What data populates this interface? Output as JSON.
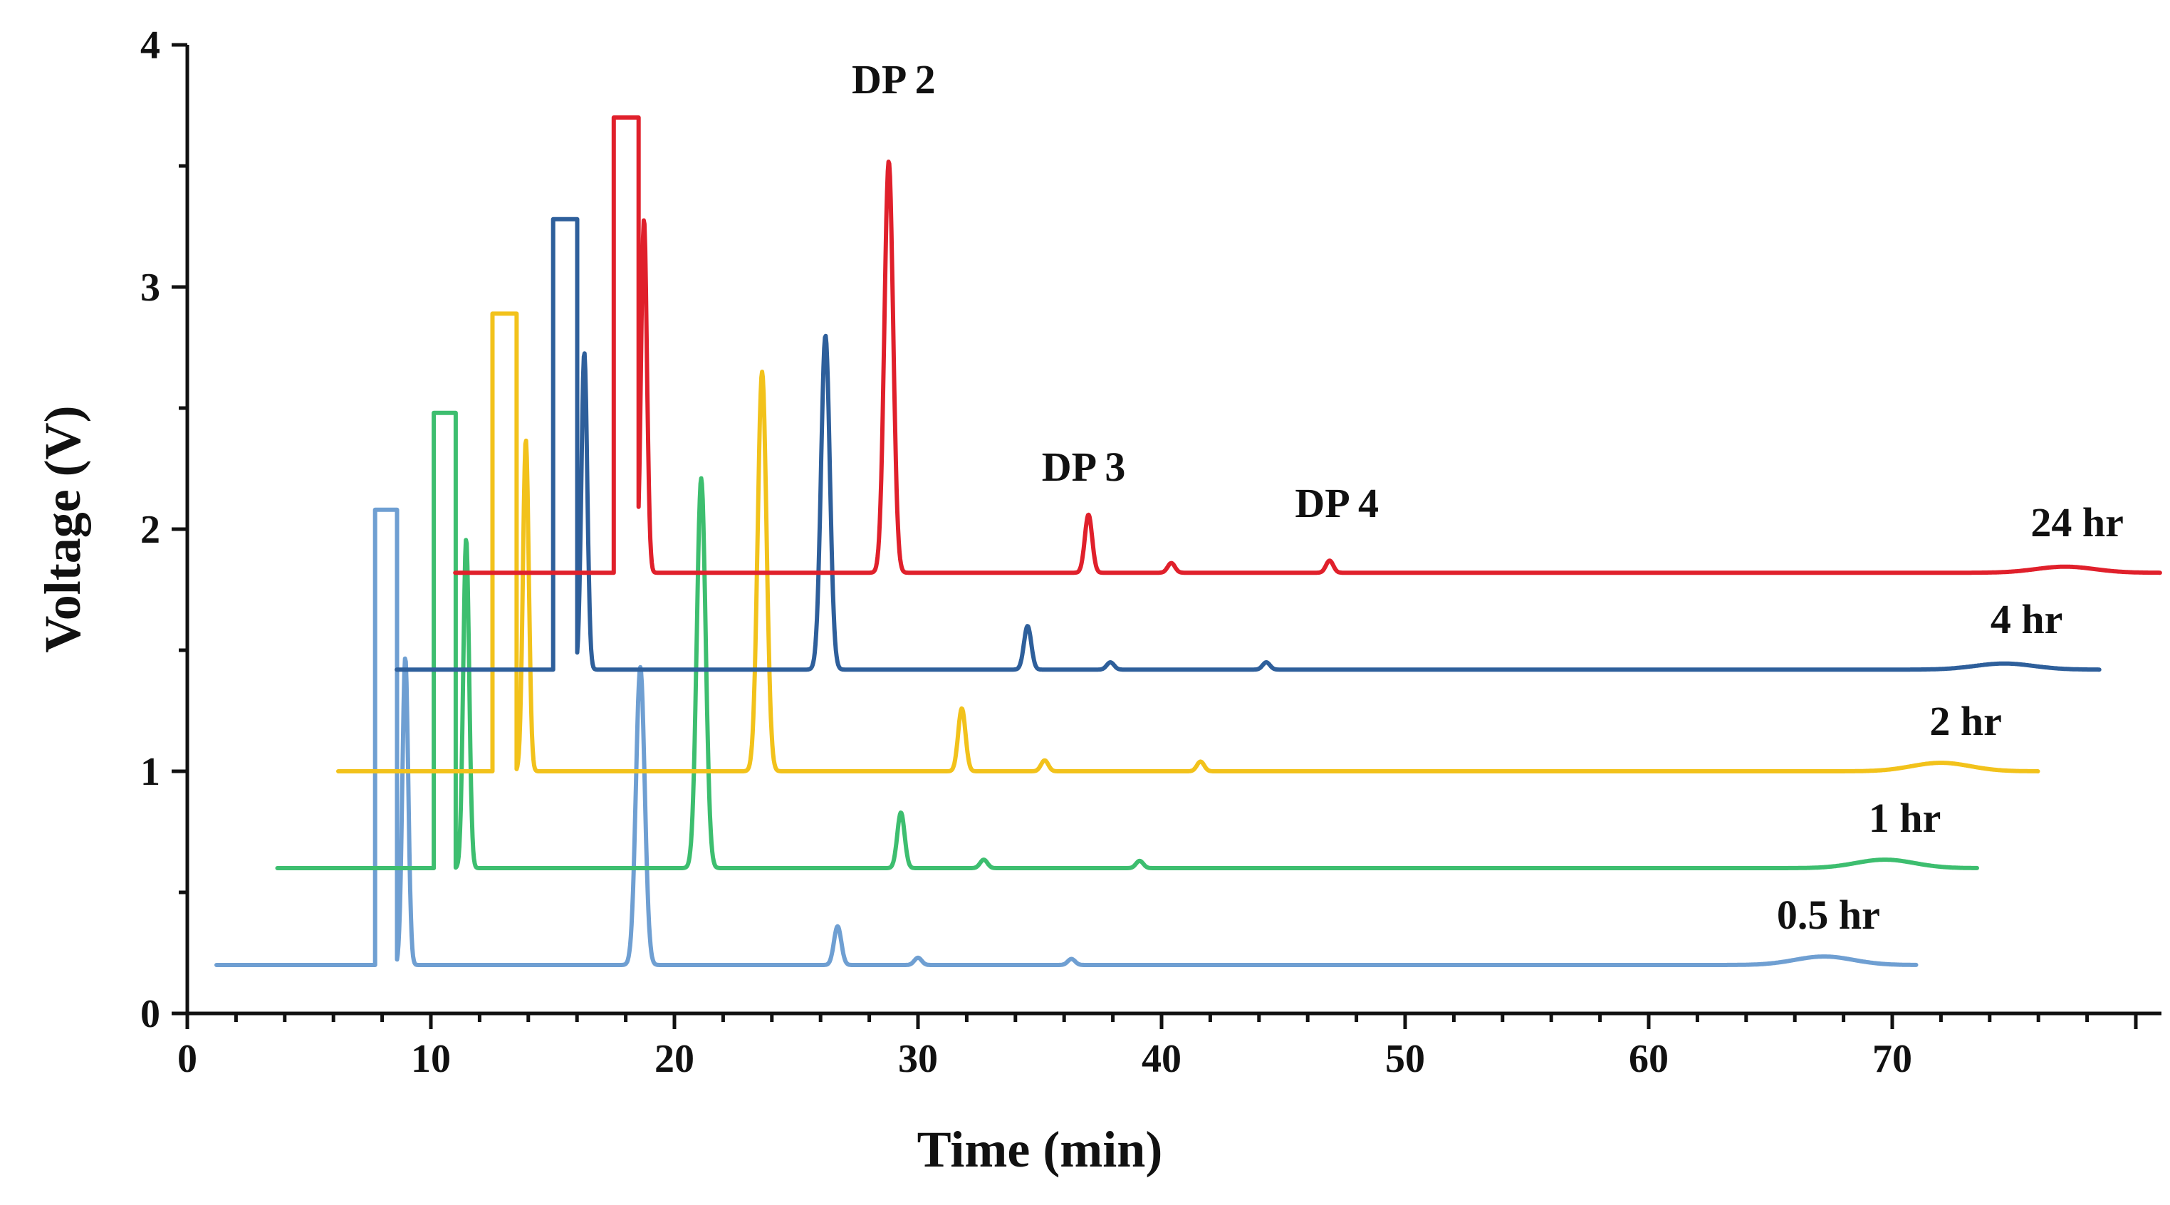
{
  "chart_data": {
    "type": "line",
    "title": "",
    "xlabel": "Time (min)",
    "ylabel": "Voltage (V)",
    "xlim": [
      0,
      80
    ],
    "ylim": [
      0,
      4
    ],
    "x_ticks": [
      "0",
      "10",
      "20",
      "30",
      "40",
      "50",
      "60",
      "70"
    ],
    "y_ticks": [
      "0",
      "1",
      "2",
      "3",
      "4"
    ],
    "legend": "labels at right end of each trace",
    "annotations": [
      {
        "text": "DP 2",
        "x": 29,
        "y": 3.8
      },
      {
        "text": "DP 3",
        "x": 36.8,
        "y": 2.2
      },
      {
        "text": "DP 4",
        "x": 47.2,
        "y": 2.05
      }
    ],
    "series": [
      {
        "name": "0.5 hr",
        "color": "#6f9fd2",
        "x_start": 1.2,
        "x_end": 71,
        "baseline": 0.2,
        "label_x": 69.5,
        "label_y": 0.35,
        "plateaus": [
          {
            "start": 7.7,
            "end": 8.6,
            "height": 2.08
          }
        ],
        "peaks": [
          {
            "x": 8.95,
            "h": 1.47,
            "w": 0.12
          },
          {
            "x": 18.6,
            "h": 1.43,
            "w": 0.18
          },
          {
            "x": 26.7,
            "h": 0.36,
            "w": 0.15
          },
          {
            "x": 30.0,
            "h": 0.23,
            "w": 0.15
          },
          {
            "x": 36.3,
            "h": 0.225,
            "w": 0.15
          },
          {
            "x": 67.2,
            "h": 0.235,
            "w": 1.2
          }
        ]
      },
      {
        "name": "1 hr",
        "color": "#3dbe6f",
        "x_start": 3.7,
        "x_end": 73.5,
        "baseline": 0.6,
        "label_x": 72,
        "label_y": 0.75,
        "plateaus": [
          {
            "start": 10.1,
            "end": 11.0,
            "height": 2.48
          }
        ],
        "peaks": [
          {
            "x": 11.45,
            "h": 1.96,
            "w": 0.12
          },
          {
            "x": 21.1,
            "h": 2.21,
            "w": 0.18
          },
          {
            "x": 29.3,
            "h": 0.83,
            "w": 0.15
          },
          {
            "x": 32.7,
            "h": 0.635,
            "w": 0.15
          },
          {
            "x": 39.1,
            "h": 0.63,
            "w": 0.15
          },
          {
            "x": 69.7,
            "h": 0.635,
            "w": 1.2
          }
        ]
      },
      {
        "name": "2 hr",
        "color": "#f2c21b",
        "x_start": 6.2,
        "x_end": 76,
        "baseline": 1.0,
        "label_x": 74.5,
        "label_y": 1.15,
        "plateaus": [
          {
            "start": 12.5,
            "end": 13.5,
            "height": 2.89
          }
        ],
        "peaks": [
          {
            "x": 13.9,
            "h": 2.37,
            "w": 0.12
          },
          {
            "x": 23.6,
            "h": 2.65,
            "w": 0.18
          },
          {
            "x": 31.8,
            "h": 1.26,
            "w": 0.15
          },
          {
            "x": 35.2,
            "h": 1.045,
            "w": 0.15
          },
          {
            "x": 41.6,
            "h": 1.04,
            "w": 0.15
          },
          {
            "x": 72.0,
            "h": 1.035,
            "w": 1.2
          }
        ]
      },
      {
        "name": "4 hr",
        "color": "#2e5f9b",
        "x_start": 8.6,
        "x_end": 78.5,
        "baseline": 1.42,
        "label_x": 77,
        "label_y": 1.57,
        "plateaus": [
          {
            "start": 15.0,
            "end": 16.0,
            "height": 3.28
          }
        ],
        "peaks": [
          {
            "x": 16.3,
            "h": 2.73,
            "w": 0.12
          },
          {
            "x": 26.2,
            "h": 2.8,
            "w": 0.18
          },
          {
            "x": 34.5,
            "h": 1.6,
            "w": 0.15
          },
          {
            "x": 37.9,
            "h": 1.45,
            "w": 0.15
          },
          {
            "x": 44.3,
            "h": 1.45,
            "w": 0.15
          },
          {
            "x": 74.6,
            "h": 1.445,
            "w": 1.2
          }
        ]
      },
      {
        "name": "24 hr",
        "color": "#e0202b",
        "x_start": 11.0,
        "x_end": 81,
        "baseline": 1.82,
        "label_x": 79.5,
        "label_y": 1.97,
        "plateaus": [
          {
            "start": 17.5,
            "end": 18.5,
            "height": 3.7
          }
        ],
        "peaks": [
          {
            "x": 18.75,
            "h": 3.28,
            "w": 0.12
          },
          {
            "x": 28.8,
            "h": 3.52,
            "w": 0.18
          },
          {
            "x": 37.0,
            "h": 2.06,
            "w": 0.15
          },
          {
            "x": 40.4,
            "h": 1.86,
            "w": 0.15
          },
          {
            "x": 46.9,
            "h": 1.87,
            "w": 0.15
          },
          {
            "x": 77.1,
            "h": 1.845,
            "w": 1.2
          }
        ]
      }
    ]
  }
}
